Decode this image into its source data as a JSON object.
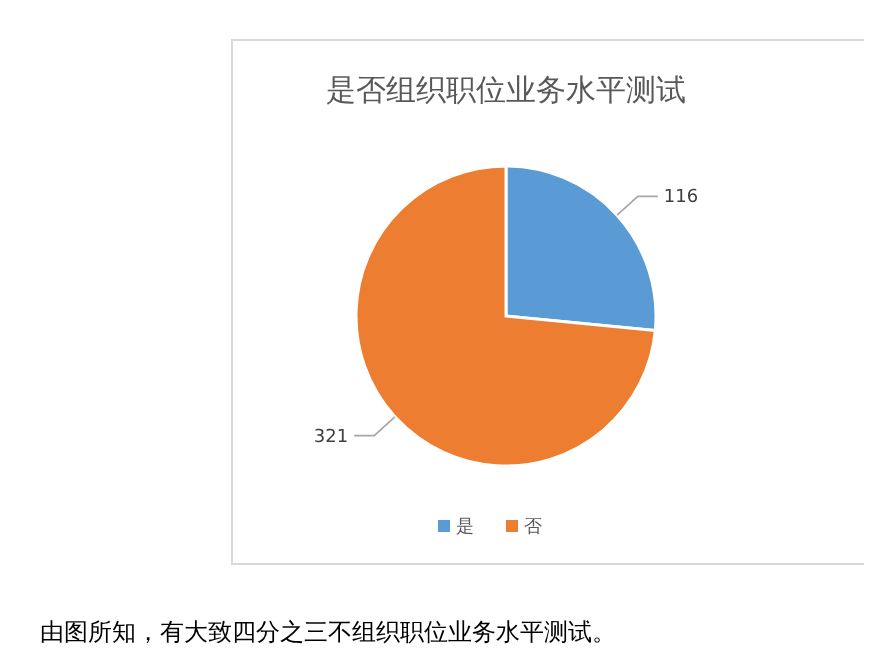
{
  "chart_data": {
    "type": "pie",
    "title": "是否组织职位业务水平测试",
    "categories": [
      "是",
      "否"
    ],
    "values": [
      116,
      321
    ],
    "colors": [
      "#5b9bd5",
      "#ed7d31"
    ],
    "data_labels": true,
    "legend": "bottom",
    "annotations": [
      "由图所知，有大致四分之三不组织职位业务水平测试。"
    ]
  }
}
